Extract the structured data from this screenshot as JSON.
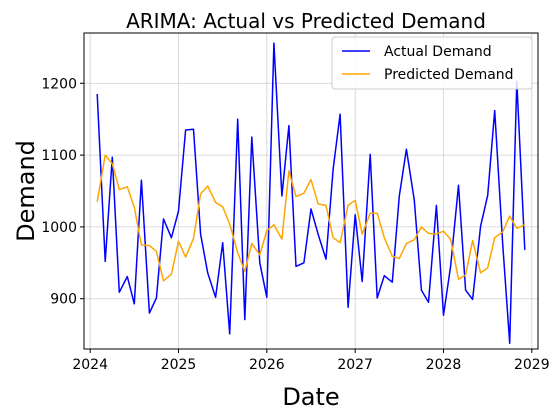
{
  "chart_data": {
    "type": "line",
    "title": "ARIMA: Actual vs Predicted Demand",
    "xlabel": "Date",
    "ylabel": "Demand",
    "xlim": [
      2023.93,
      2029.07
    ],
    "ylim": [
      830,
      1270
    ],
    "x_ticks": [
      2024,
      2025,
      2026,
      2027,
      2028,
      2029
    ],
    "y_ticks": [
      900,
      1000,
      1100,
      1200
    ],
    "grid": true,
    "legend_position": "top-right",
    "x": [
      2024.08,
      2024.17,
      2024.25,
      2024.33,
      2024.42,
      2024.5,
      2024.58,
      2024.67,
      2024.75,
      2024.83,
      2024.92,
      2025.0,
      2025.08,
      2025.17,
      2025.25,
      2025.33,
      2025.42,
      2025.5,
      2025.58,
      2025.67,
      2025.75,
      2025.83,
      2025.92,
      2026.0,
      2026.08,
      2026.17,
      2026.25,
      2026.33,
      2026.42,
      2026.5,
      2026.58,
      2026.67,
      2026.75,
      2026.83,
      2026.92,
      2027.0,
      2027.08,
      2027.17,
      2027.25,
      2027.33,
      2027.42,
      2027.5,
      2027.58,
      2027.67,
      2027.75,
      2027.83,
      2027.92,
      2028.0,
      2028.08,
      2028.17,
      2028.25,
      2028.33,
      2028.42,
      2028.5,
      2028.58,
      2028.67,
      2028.75,
      2028.83,
      2028.92
    ],
    "series": [
      {
        "name": "Actual Demand",
        "color": "#0000ff",
        "values": [
          1185,
          952,
          1097,
          909,
          931,
          893,
          1065,
          880,
          901,
          1011,
          985,
          1022,
          1135,
          1136,
          990,
          936,
          902,
          978,
          851,
          1150,
          871,
          1125,
          950,
          902,
          1256,
          1043,
          1141,
          945,
          950,
          1025,
          990,
          955,
          1080,
          1157,
          888,
          1017,
          924,
          1101,
          901,
          932,
          923,
          1043,
          1108,
          1037,
          912,
          895,
          1030,
          877,
          945,
          1058,
          912,
          899,
          1001,
          1044,
          1162,
          976,
          838,
          1203,
          968
        ]
      },
      {
        "name": "Predicted Demand",
        "color": "#ffa500",
        "values": [
          1035,
          1100,
          1088,
          1052,
          1056,
          1027,
          975,
          974,
          966,
          925,
          934,
          980,
          958,
          984,
          1046,
          1057,
          1034,
          1028,
          1004,
          964,
          938,
          977,
          961,
          995,
          1003,
          983,
          1078,
          1042,
          1047,
          1066,
          1032,
          1030,
          985,
          978,
          1030,
          1037,
          990,
          1019,
          1019,
          985,
          959,
          956,
          977,
          982,
          1000,
          991,
          990,
          994,
          983,
          927,
          933,
          981,
          936,
          943,
          985,
          993,
          1015,
          998,
          1003
        ]
      }
    ]
  }
}
